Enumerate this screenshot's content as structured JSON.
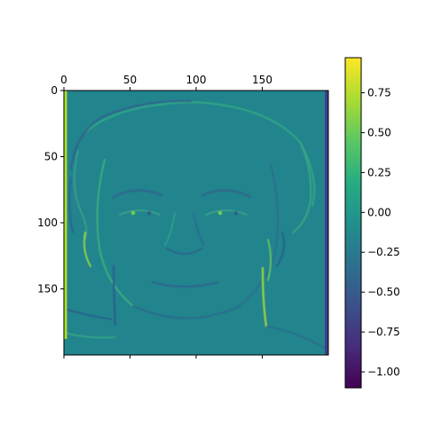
{
  "chart_data": {
    "type": "heatmap",
    "title": "",
    "subject": "horizontal edge-filtered grayscale face image",
    "x_ticks": [
      0,
      50,
      100,
      150
    ],
    "y_ticks": [
      0,
      50,
      100,
      150
    ],
    "xlim": [
      0,
      200
    ],
    "ylim": [
      200,
      0
    ],
    "x_ticks_position": "top",
    "colormap": "viridis",
    "colorbar": {
      "range": [
        -1.1,
        0.97
      ],
      "ticks": [
        -1.0,
        -0.75,
        -0.5,
        -0.25,
        0.0,
        0.25,
        0.5,
        0.75
      ],
      "tick_labels": [
        "−1.00",
        "−0.75",
        "−0.50",
        "−0.25",
        "0.00",
        "0.25",
        "0.50",
        "0.75"
      ],
      "position": "right"
    },
    "background_value": -0.05,
    "left_edge_value": 0.9,
    "right_edge_value": -0.85
  },
  "colors": {
    "frame": "#000000",
    "viridis": [
      "#440154",
      "#472c7a",
      "#3b518b",
      "#2c718e",
      "#21908d",
      "#27ad81",
      "#5cc863",
      "#aadc32",
      "#fde725"
    ]
  }
}
